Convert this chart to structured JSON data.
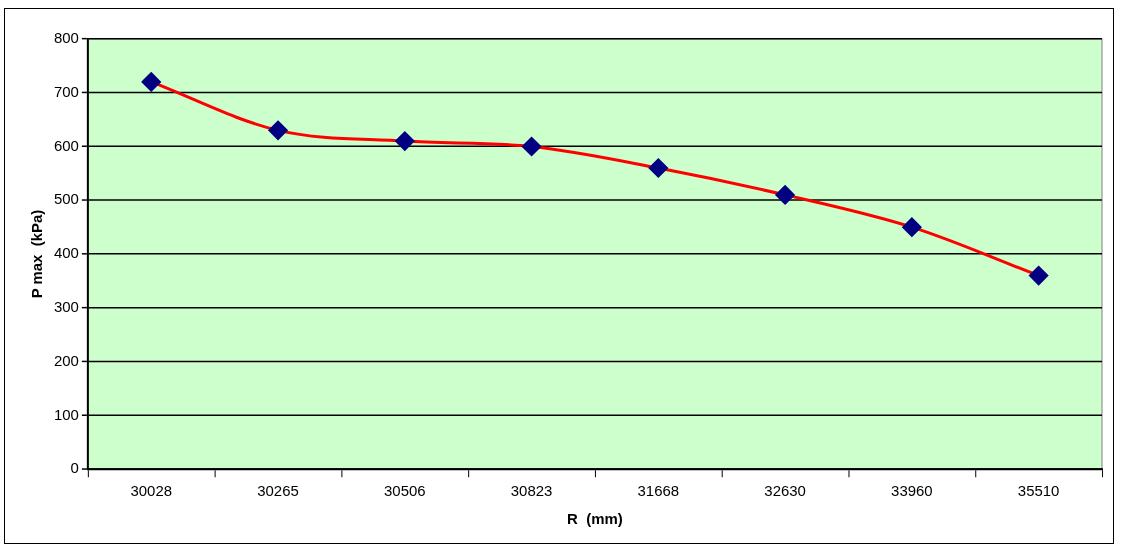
{
  "chart_data": {
    "type": "line",
    "xlabel": "R  (mm)",
    "ylabel": "P max  (kPa)",
    "categories": [
      "30028",
      "30265",
      "30506",
      "30823",
      "31668",
      "32630",
      "33960",
      "35510"
    ],
    "series": [
      {
        "color": "#ff0000",
        "values": [
          720,
          630,
          610,
          600,
          560,
          510,
          450,
          360
        ]
      }
    ],
    "ylim": [
      0,
      800
    ],
    "yticks": [
      0,
      100,
      200,
      300,
      400,
      500,
      600,
      700,
      800
    ],
    "grid": "y",
    "legend": false,
    "marker": "diamond",
    "line_style": "solid"
  }
}
